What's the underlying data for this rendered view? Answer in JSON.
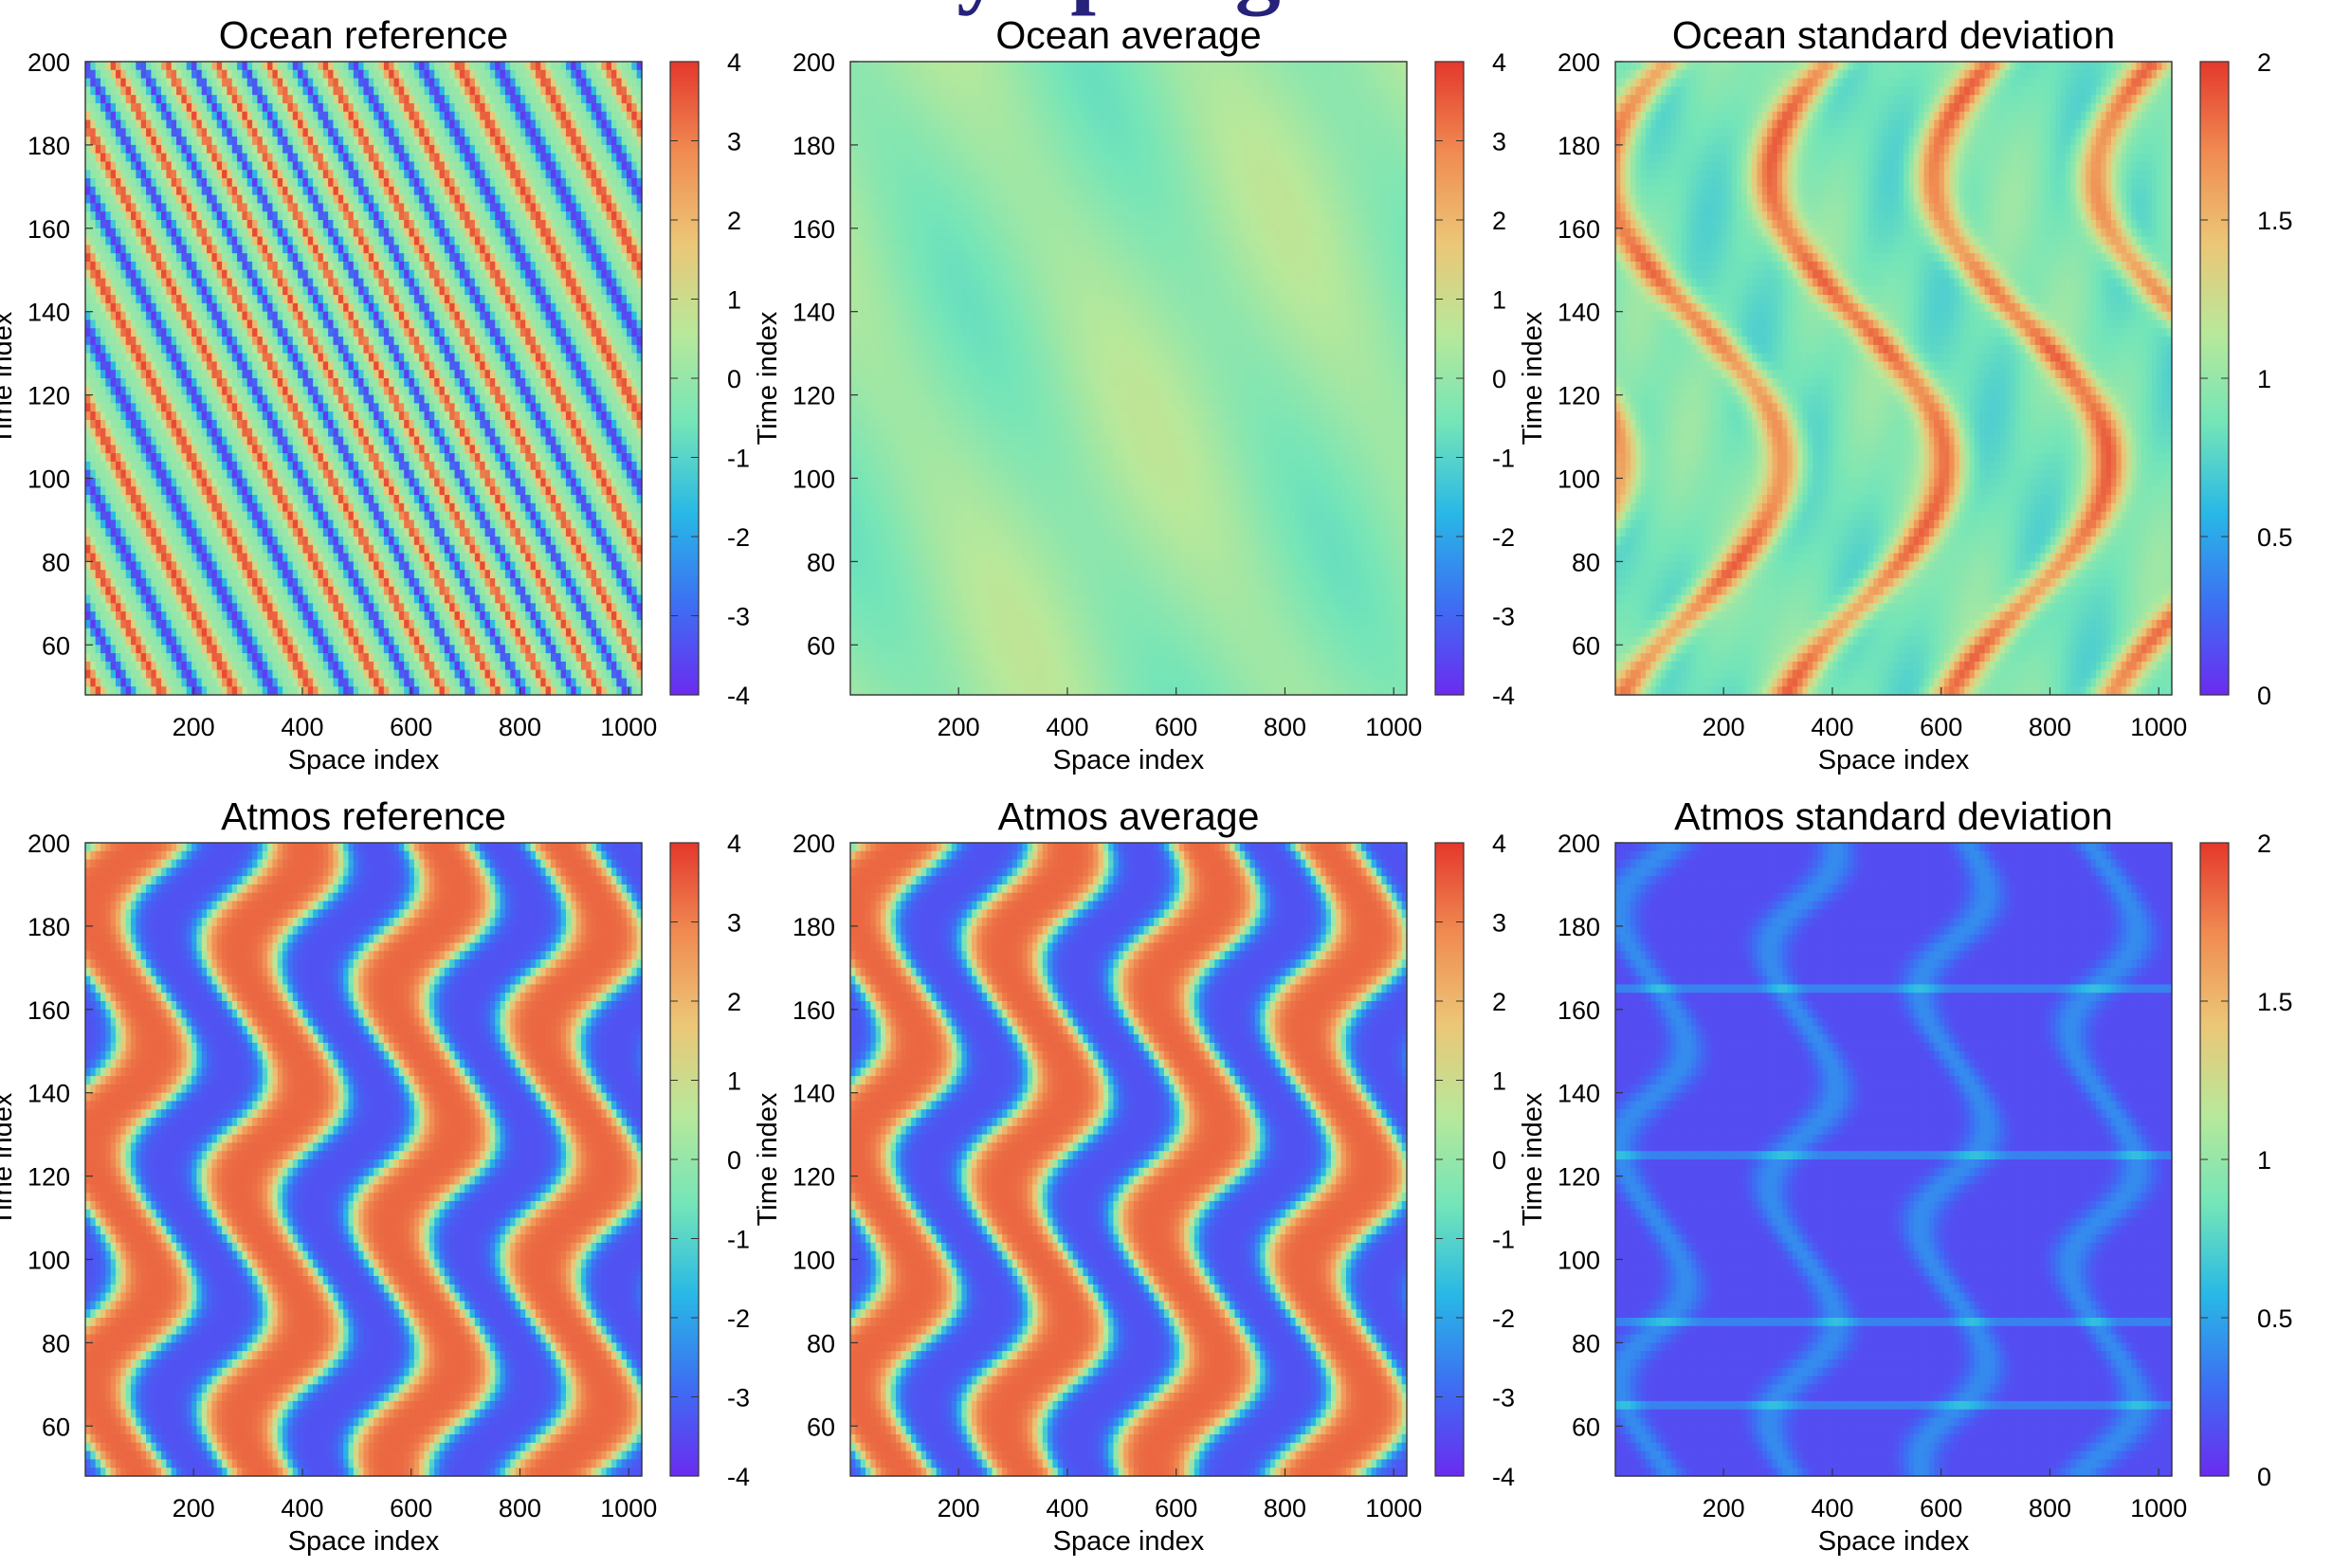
{
  "banner_text": "y   p     g",
  "colors": {
    "colormap": [
      "#6a2cf0",
      "#3d6ff3",
      "#28b8e6",
      "#74e5b8",
      "#b8e89a",
      "#ecc676",
      "#f08b52",
      "#e4382c"
    ],
    "banner": "#26217a"
  },
  "chart_data": [
    {
      "type": "heatmap",
      "title": "Ocean reference",
      "xlabel": "Space index",
      "ylabel": "Time index",
      "xlim": [
        1,
        1024
      ],
      "ylim": [
        48,
        200
      ],
      "xticks": [
        200,
        400,
        600,
        800,
        1000
      ],
      "yticks": [
        60,
        80,
        100,
        120,
        140,
        160,
        180,
        200
      ],
      "color_range": [
        -4,
        4
      ],
      "colorbar_ticks": [
        "4",
        "3",
        "2",
        "1",
        "0",
        "-1",
        "-2",
        "-3",
        "-4"
      ],
      "pattern": "thin diagonal streaks of alternating sign, values spanning roughly -4 to 4"
    },
    {
      "type": "heatmap",
      "title": "Ocean average",
      "xlabel": "Space index",
      "ylabel": "Time index",
      "xlim": [
        1,
        1024
      ],
      "ylim": [
        48,
        200
      ],
      "xticks": [
        200,
        400,
        600,
        800,
        1000
      ],
      "yticks": [
        60,
        80,
        100,
        120,
        140,
        160,
        180,
        200
      ],
      "color_range": [
        -4,
        4
      ],
      "colorbar_ticks": [
        "4",
        "3",
        "2",
        "1",
        "0",
        "-1",
        "-2",
        "-3",
        "-4"
      ],
      "pattern": "smooth field with values mostly between -1 and 1"
    },
    {
      "type": "heatmap",
      "title": "Ocean standard deviation",
      "xlabel": "Space index",
      "ylabel": "Time index",
      "xlim": [
        1,
        1024
      ],
      "ylim": [
        48,
        200
      ],
      "xticks": [
        200,
        400,
        600,
        800,
        1000
      ],
      "yticks": [
        60,
        80,
        100,
        120,
        140,
        160,
        180,
        200
      ],
      "color_range": [
        0,
        2
      ],
      "colorbar_ticks": [
        "2",
        "1.5",
        "1",
        "0.5",
        "0"
      ],
      "pattern": "background near 0.8-1.0 with thin curved ridges reaching about 1.8"
    },
    {
      "type": "heatmap",
      "title": "Atmos reference",
      "xlabel": "Space index",
      "ylabel": "Time index",
      "xlim": [
        1,
        1024
      ],
      "ylim": [
        48,
        200
      ],
      "xticks": [
        200,
        400,
        600,
        800,
        1000
      ],
      "yticks": [
        60,
        80,
        100,
        120,
        140,
        160,
        180,
        200
      ],
      "color_range": [
        -4,
        4
      ],
      "colorbar_ticks": [
        "4",
        "3",
        "2",
        "1",
        "0",
        "-1",
        "-2",
        "-3",
        "-4"
      ],
      "pattern": "wide wavy bands of alternating sign reaching about -3.5 and 3.5"
    },
    {
      "type": "heatmap",
      "title": "Atmos average",
      "xlabel": "Space index",
      "ylabel": "Time index",
      "xlim": [
        1,
        1024
      ],
      "ylim": [
        48,
        200
      ],
      "xticks": [
        200,
        400,
        600,
        800,
        1000
      ],
      "yticks": [
        60,
        80,
        100,
        120,
        140,
        160,
        180,
        200
      ],
      "color_range": [
        -4,
        4
      ],
      "colorbar_ticks": [
        "4",
        "3",
        "2",
        "1",
        "0",
        "-1",
        "-2",
        "-3",
        "-4"
      ],
      "pattern": "nearly identical to Atmos reference"
    },
    {
      "type": "heatmap",
      "title": "Atmos standard deviation",
      "xlabel": "Space index",
      "ylabel": "Time index",
      "xlim": [
        1,
        1024
      ],
      "ylim": [
        48,
        200
      ],
      "xticks": [
        200,
        400,
        600,
        800,
        1000
      ],
      "yticks": [
        60,
        80,
        100,
        120,
        140,
        160,
        180,
        200
      ],
      "color_range": [
        0,
        2
      ],
      "colorbar_ticks": [
        "2",
        "1.5",
        "1",
        "0.5",
        "0"
      ],
      "pattern": "mostly near 0-0.2 with faint wavy bands near 0.4 and brighter streaks at time 65, 85, 125, 165"
    }
  ]
}
